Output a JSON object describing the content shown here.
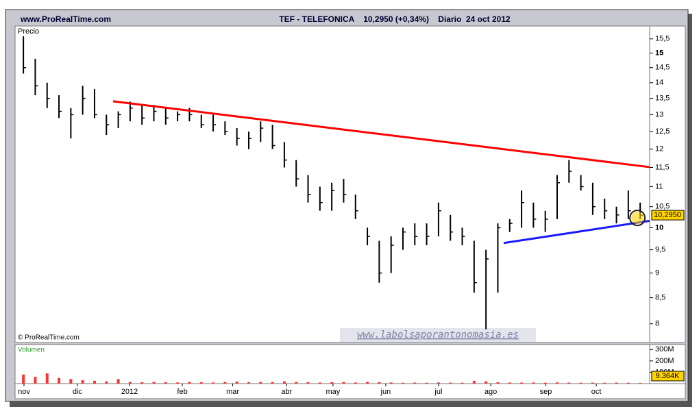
{
  "chart_data": {
    "type": "ohlc",
    "site": "www.ProRealTime.com",
    "title": "TEF - TELEFONICA    10,2950 (+0,34%)    Diario  24 oct 2012",
    "price_label": "Precio",
    "copyright": "© ProRealTime.com",
    "watermark": "www.labolsaporantonomasia.es",
    "close_label": "10,2950",
    "color": "#000000",
    "log": true,
    "x": [
      0,
      1,
      2,
      3,
      4,
      5,
      6,
      7,
      8,
      9,
      10,
      11,
      12,
      13,
      14,
      15,
      16,
      17,
      18,
      19,
      20,
      21,
      22,
      23,
      24,
      25,
      26,
      27,
      28,
      29,
      30,
      31,
      32,
      33,
      34,
      35,
      36,
      37,
      38,
      39,
      40,
      41,
      42,
      43,
      44,
      45,
      46,
      47,
      48,
      49,
      50,
      51,
      52
    ],
    "high": [
      15.6,
      14.8,
      14.0,
      13.6,
      13.2,
      13.9,
      13.8,
      13.0,
      13.1,
      13.4,
      13.3,
      13.3,
      13.2,
      13.1,
      13.2,
      13.0,
      13.0,
      12.8,
      12.6,
      12.5,
      12.8,
      12.7,
      12.2,
      11.7,
      11.3,
      11.0,
      11.1,
      11.2,
      10.8,
      10.0,
      9.7,
      9.8,
      10.0,
      10.1,
      10.1,
      10.6,
      10.3,
      10.0,
      9.7,
      9.5,
      10.1,
      10.2,
      10.9,
      10.6,
      10.4,
      11.3,
      11.7,
      11.3,
      11.1,
      10.7,
      10.5,
      10.9,
      10.6
    ],
    "low": [
      14.3,
      13.6,
      13.2,
      12.9,
      12.3,
      13.0,
      12.9,
      12.4,
      12.6,
      12.8,
      12.7,
      12.8,
      12.7,
      12.8,
      12.8,
      12.6,
      12.5,
      12.4,
      12.1,
      12.0,
      12.2,
      12.0,
      11.5,
      11.0,
      10.6,
      10.4,
      10.4,
      10.6,
      10.2,
      9.6,
      8.8,
      9.0,
      9.5,
      9.6,
      9.6,
      9.8,
      9.7,
      9.6,
      8.6,
      7.9,
      8.6,
      9.9,
      10.0,
      10.0,
      9.9,
      10.2,
      11.1,
      10.9,
      10.3,
      10.2,
      10.1,
      10.2,
      10.2
    ],
    "close": [
      14.5,
      13.9,
      13.5,
      13.1,
      13.0,
      13.5,
      13.0,
      12.7,
      13.0,
      13.2,
      12.9,
      13.1,
      12.9,
      13.0,
      13.0,
      12.7,
      12.7,
      12.5,
      12.3,
      12.3,
      12.6,
      12.1,
      11.7,
      11.2,
      10.8,
      10.6,
      10.9,
      10.8,
      10.4,
      9.8,
      9.0,
      9.6,
      9.9,
      9.8,
      9.8,
      10.4,
      9.9,
      9.8,
      8.8,
      9.3,
      10.0,
      10.1,
      10.6,
      10.2,
      10.2,
      11.1,
      11.4,
      11.0,
      10.5,
      10.4,
      10.3,
      10.4,
      10.295
    ],
    "xlim": [
      -0.7,
      52.8
    ],
    "xticks": [
      {
        "value": 0.05,
        "label": "nov"
      },
      {
        "value": 4.55,
        "label": "dic"
      },
      {
        "value": 8.95,
        "label": "2012"
      },
      {
        "value": 13.4,
        "label": "feb"
      },
      {
        "value": 17.65,
        "label": "mar"
      },
      {
        "value": 22.2,
        "label": "abr"
      },
      {
        "value": 26.1,
        "label": "may"
      },
      {
        "value": 30.55,
        "label": "jun"
      },
      {
        "value": 35,
        "label": "jul"
      },
      {
        "value": 39.4,
        "label": "ago"
      },
      {
        "value": 44.05,
        "label": "sep"
      },
      {
        "value": 48.3,
        "label": "oct"
      }
    ],
    "ylim": [
      7.66,
      15.97
    ],
    "yticks": [
      {
        "value": 15.5,
        "label": "15,5"
      },
      15,
      {
        "value": 14.5,
        "label": "14,5"
      },
      14,
      {
        "value": 13.5,
        "label": "13,5"
      },
      13,
      {
        "value": 12.5,
        "label": "12,5"
      },
      12,
      {
        "value": 11.5,
        "label": "11,5"
      },
      11,
      {
        "value": 10.5,
        "label": "10,5"
      },
      10,
      {
        "value": 9.5,
        "label": "9,5"
      },
      9,
      {
        "value": 8.5,
        "label": "8,5"
      },
      8
    ],
    "trendlines": [
      {
        "color": "#ff0000",
        "x": [
          7.56,
          52.8
        ],
        "y": [
          13.41,
          11.51
        ]
      },
      {
        "color": "#1a1aff",
        "x": [
          40.5,
          52.8
        ],
        "y": [
          9.65,
          10.16
        ]
      }
    ],
    "volume": {
      "label": "Volumen",
      "color": "#ff3333",
      "last_label": "9.364K",
      "ylim": [
        0,
        344
      ],
      "yticks": [
        {
          "value": 300,
          "label": "300M"
        },
        {
          "value": 200,
          "label": "200M"
        },
        {
          "value": 100,
          "label": "100M"
        }
      ],
      "values": [
        80,
        60,
        90,
        50,
        40,
        30,
        25,
        20,
        40,
        15,
        12,
        15,
        12,
        10,
        15,
        12,
        10,
        14,
        18,
        12,
        15,
        14,
        20,
        15,
        12,
        10,
        12,
        14,
        10,
        15,
        12,
        10,
        8,
        9,
        8,
        10,
        9,
        8,
        25,
        20,
        12,
        10,
        9,
        10,
        8,
        11,
        9,
        8,
        9,
        8,
        9,
        8,
        7
      ]
    }
  }
}
